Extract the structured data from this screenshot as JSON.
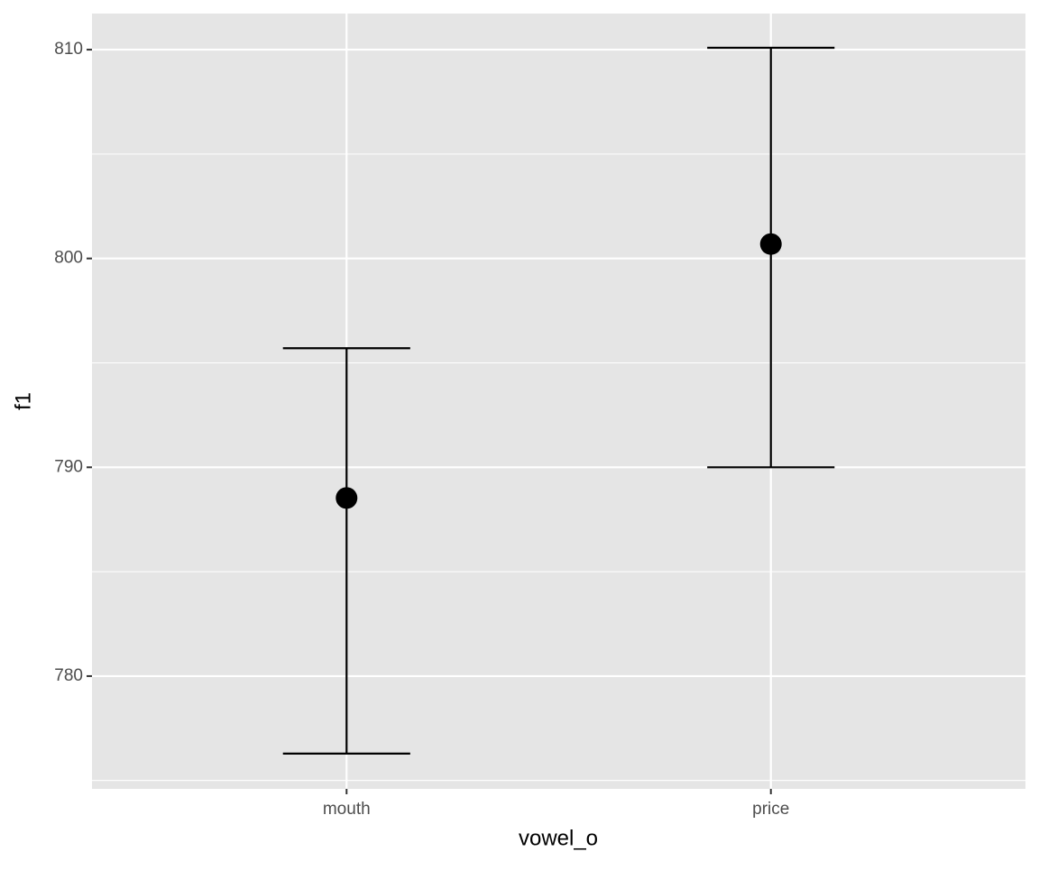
{
  "chart_data": {
    "type": "pointrange",
    "x_label": "vowel_o",
    "y_label": "f1",
    "categories": [
      "mouth",
      "price"
    ],
    "series": [
      {
        "color": "#000000",
        "values": [
          788.53,
          800.69
        ],
        "lower": [
          776.29,
          790.0
        ],
        "upper": [
          795.7,
          810.09
        ]
      }
    ],
    "ylim": [
      774.6,
      811.73
    ],
    "yticks": [
      780,
      790,
      800,
      810
    ],
    "minor_yticks": [
      775,
      785,
      795,
      805
    ],
    "grid": true
  }
}
